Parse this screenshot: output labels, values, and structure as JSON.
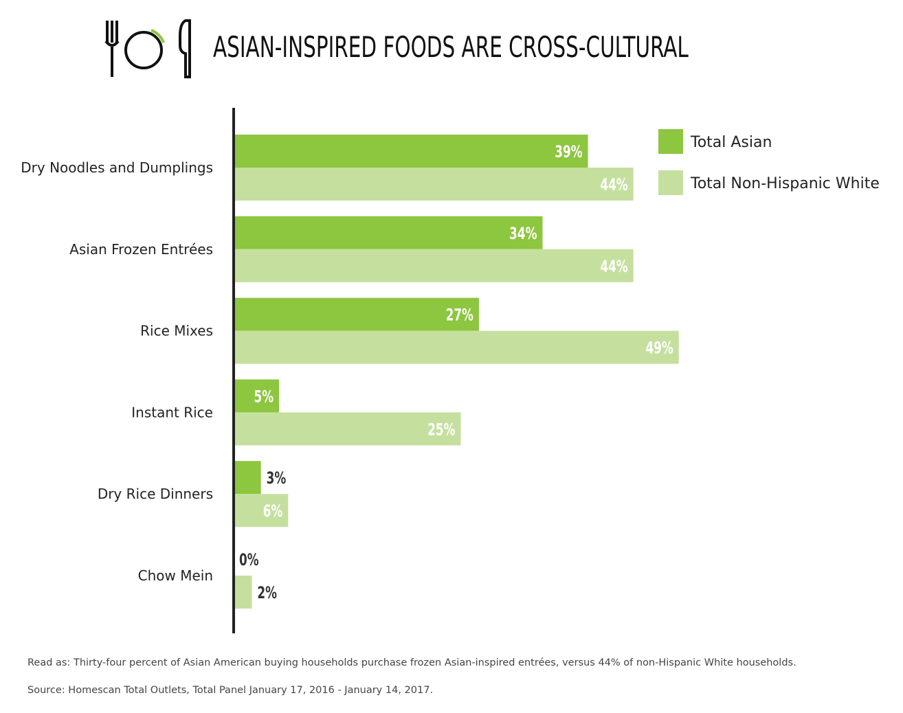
{
  "header": {
    "icon": "fork-plate-knife-icon",
    "title": "ASIAN-INSPIRED FOODS ARE CROSS-CULTURAL"
  },
  "colors": {
    "asian": "#8dc63f",
    "white": "#c5e09e",
    "axis": "#222222",
    "label_on_bar": "#ffffff",
    "label_outside": "#333333"
  },
  "chart_data": {
    "type": "bar",
    "orientation": "horizontal",
    "categories": [
      "Dry Noodles and Dumplings",
      "Asian Frozen Entrées",
      "Rice Mixes",
      "Instant Rice",
      "Dry Rice Dinners",
      "Chow Mein"
    ],
    "series": [
      {
        "name": "Total Asian",
        "values": [
          39,
          34,
          27,
          5,
          3,
          0
        ]
      },
      {
        "name": "Total Non-Hispanic White",
        "values": [
          44,
          44,
          49,
          25,
          6,
          2
        ]
      }
    ],
    "value_suffix": "%",
    "xlim": [
      0,
      100
    ],
    "grid": false,
    "legend": "top-right"
  },
  "footer": {
    "note": "Read as: Thirty-four percent of Asian American buying households purchase frozen Asian-inspired entrées, versus 44% of non-Hispanic White households.",
    "source": "Source: Homescan Total Outlets, Total Panel January 17, 2016 - January 14, 2017."
  }
}
